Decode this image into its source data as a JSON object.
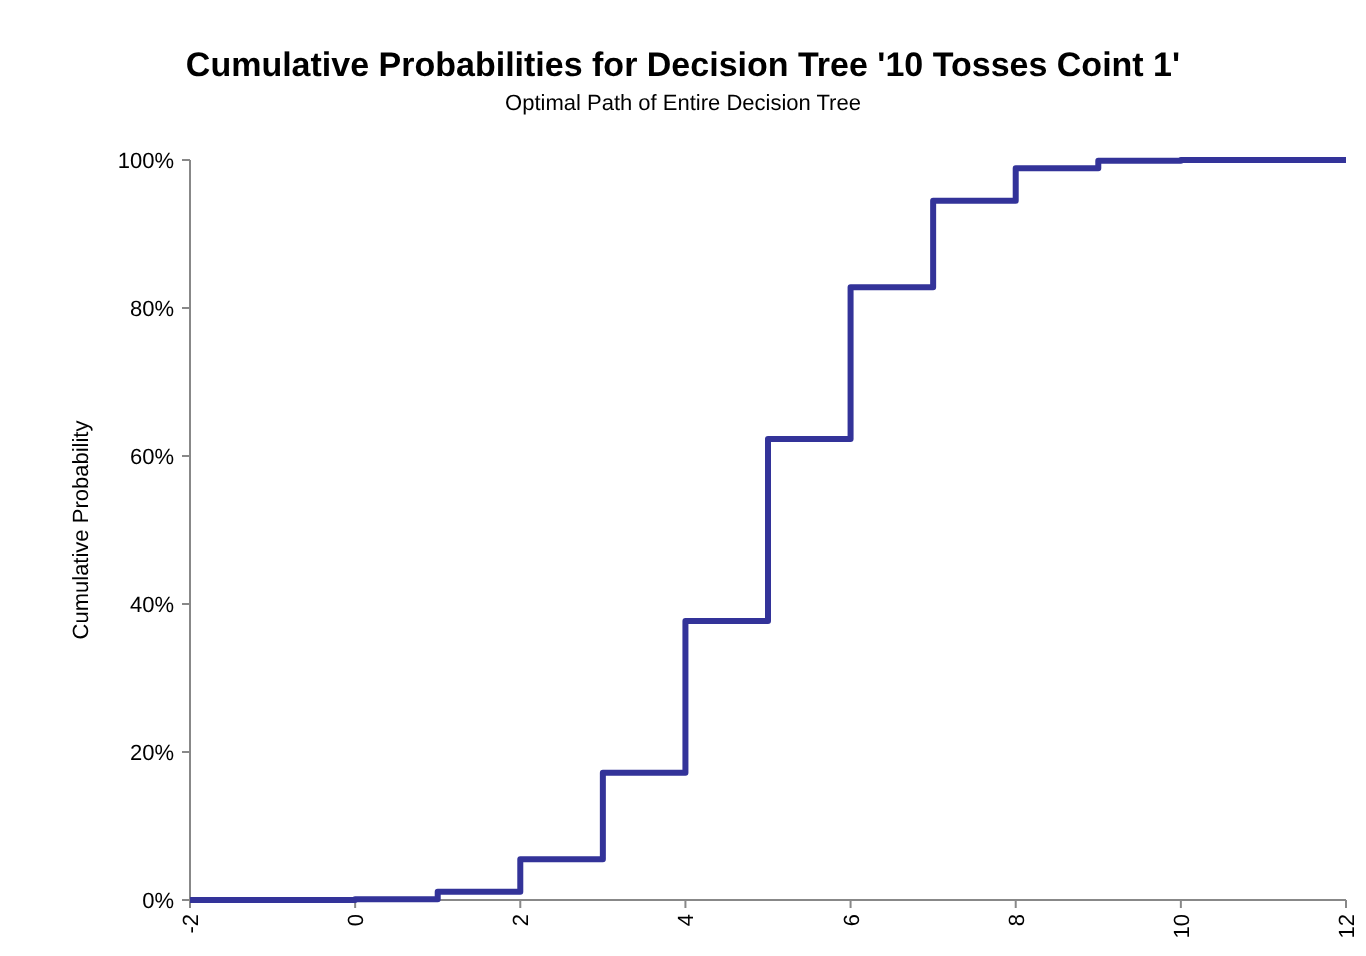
{
  "chart_data": {
    "type": "step",
    "title": "Cumulative Probabilities for Decision Tree '10 Tosses Coint 1'",
    "subtitle": "Optimal Path of Entire Decision Tree",
    "ylabel": "Cumulative Probability",
    "x": [
      -2,
      0,
      1,
      2,
      3,
      4,
      5,
      6,
      7,
      8,
      9,
      10,
      12
    ],
    "series": [
      {
        "color": "#333399",
        "values": [
          0,
          0.1,
          1.1,
          5.5,
          17.2,
          37.7,
          62.3,
          82.8,
          94.5,
          98.9,
          99.9,
          100,
          100
        ]
      }
    ],
    "xlim": [
      -2,
      12
    ],
    "xticks": [
      -2,
      0,
      2,
      4,
      6,
      8,
      10,
      12
    ],
    "ylim": [
      0,
      100
    ],
    "yticks": [
      {
        "value": 0,
        "label": "0%"
      },
      {
        "value": 20,
        "label": "20%"
      },
      {
        "value": 40,
        "label": "40%"
      },
      {
        "value": 60,
        "label": "60%"
      },
      {
        "value": 80,
        "label": "80%"
      },
      {
        "value": 100,
        "label": "100%"
      }
    ],
    "marker": "none",
    "line_style": "solid"
  }
}
